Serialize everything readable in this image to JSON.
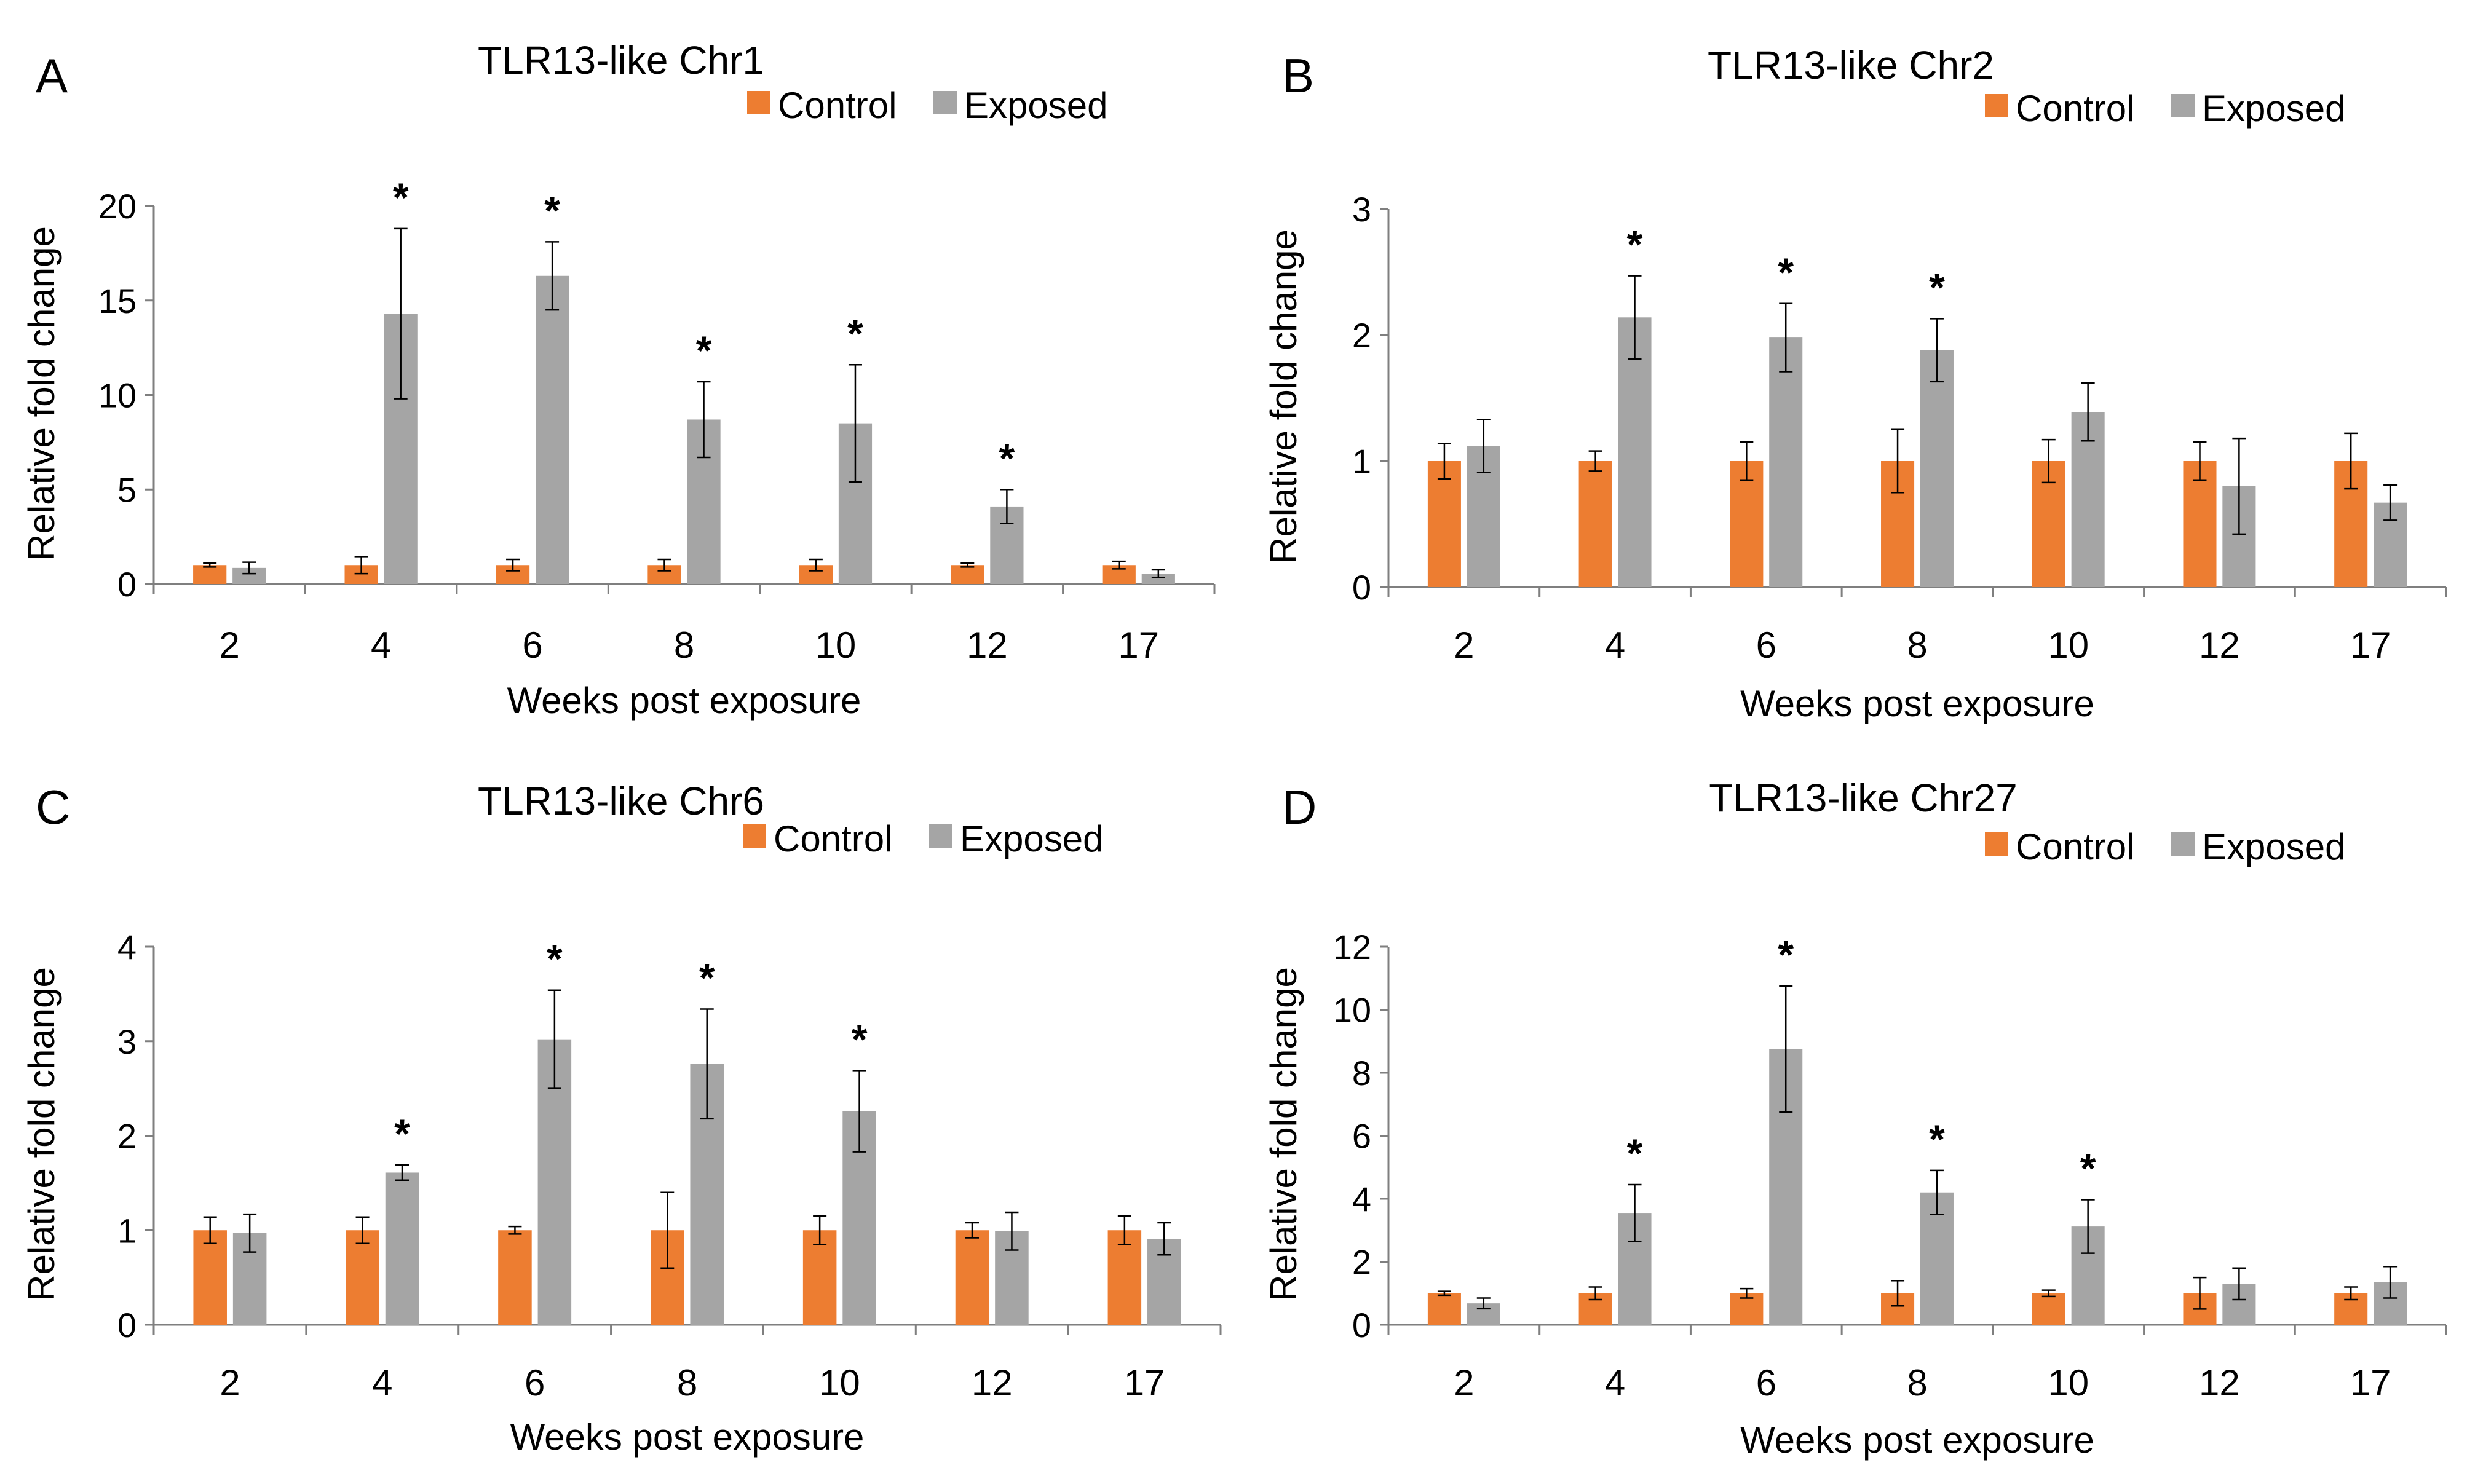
{
  "colors": {
    "control": "#ED7D31",
    "exposed": "#A5A5A5",
    "axis": "#7F7F7F",
    "error_bar": "#000000",
    "text": "#000000"
  },
  "chart_data": [
    {
      "panel": "A",
      "type": "bar",
      "title": "TLR13-like Chr1",
      "xlabel": "Weeks post exposure",
      "ylabel": "Relative fold change",
      "ylim": [
        0,
        20
      ],
      "yticks": [
        0,
        5,
        10,
        15,
        20
      ],
      "grid": false,
      "legend_position": "top-right",
      "categories": [
        "2",
        "4",
        "6",
        "8",
        "10",
        "12",
        "17"
      ],
      "series": [
        {
          "name": "Control",
          "values": [
            1,
            1,
            1,
            1,
            1,
            1,
            1
          ],
          "errors": [
            0.1,
            0.45,
            0.3,
            0.3,
            0.3,
            0.1,
            0.2
          ]
        },
        {
          "name": "Exposed",
          "values": [
            0.85,
            14.3,
            16.3,
            8.7,
            8.5,
            4.1,
            0.55
          ],
          "errors": [
            0.3,
            4.5,
            1.8,
            2.0,
            3.1,
            0.9,
            0.2
          ]
        }
      ],
      "significance_label": "*",
      "significant": [
        false,
        true,
        true,
        true,
        true,
        true,
        false
      ]
    },
    {
      "panel": "B",
      "type": "bar",
      "title": "TLR13-like Chr2",
      "xlabel": "Weeks post exposure",
      "ylabel": "Relative fold change",
      "ylim": [
        0,
        3
      ],
      "yticks": [
        0,
        1,
        2,
        3
      ],
      "grid": false,
      "legend_position": "top-right",
      "categories": [
        "2",
        "4",
        "6",
        "8",
        "10",
        "12",
        "17"
      ],
      "series": [
        {
          "name": "Control",
          "values": [
            1,
            1,
            1,
            1,
            1,
            1,
            1
          ],
          "errors": [
            0.14,
            0.08,
            0.15,
            0.25,
            0.17,
            0.15,
            0.22
          ]
        },
        {
          "name": "Exposed",
          "values": [
            1.12,
            2.14,
            1.98,
            1.88,
            1.39,
            0.8,
            0.67
          ],
          "errors": [
            0.21,
            0.33,
            0.27,
            0.25,
            0.23,
            0.38,
            0.14
          ]
        }
      ],
      "significance_label": "*",
      "significant": [
        false,
        true,
        true,
        true,
        false,
        false,
        false
      ]
    },
    {
      "panel": "C",
      "type": "bar",
      "title": "TLR13-like Chr6",
      "xlabel": "Weeks post exposure",
      "ylabel": "Relative fold change",
      "ylim": [
        0,
        4
      ],
      "yticks": [
        0,
        1,
        2,
        3,
        4
      ],
      "grid": false,
      "legend_position": "top-right",
      "categories": [
        "2",
        "4",
        "6",
        "8",
        "10",
        "12",
        "17"
      ],
      "series": [
        {
          "name": "Control",
          "values": [
            1,
            1,
            1,
            1,
            1,
            1,
            1
          ],
          "errors": [
            0.14,
            0.14,
            0.04,
            0.4,
            0.15,
            0.08,
            0.15
          ]
        },
        {
          "name": "Exposed",
          "values": [
            0.97,
            1.61,
            3.02,
            2.76,
            2.26,
            0.99,
            0.91
          ],
          "errors": [
            0.2,
            0.08,
            0.52,
            0.58,
            0.43,
            0.2,
            0.17
          ]
        }
      ],
      "significance_label": "*",
      "significant": [
        false,
        true,
        true,
        true,
        true,
        false,
        false
      ]
    },
    {
      "panel": "D",
      "type": "bar",
      "title": "TLR13-like Chr27",
      "xlabel": "Weeks post exposure",
      "ylabel": "Relative fold change",
      "ylim": [
        0,
        12
      ],
      "yticks": [
        0,
        2,
        4,
        6,
        8,
        10,
        12
      ],
      "grid": false,
      "legend_position": "top-right",
      "categories": [
        "2",
        "4",
        "6",
        "8",
        "10",
        "12",
        "17"
      ],
      "series": [
        {
          "name": "Control",
          "values": [
            1,
            1,
            1,
            1,
            1,
            1,
            1
          ],
          "errors": [
            0.06,
            0.2,
            0.15,
            0.4,
            0.1,
            0.5,
            0.2
          ]
        },
        {
          "name": "Exposed",
          "values": [
            0.68,
            3.55,
            8.75,
            4.2,
            3.12,
            1.3,
            1.35
          ],
          "errors": [
            0.17,
            0.9,
            2.0,
            0.7,
            0.85,
            0.5,
            0.5
          ]
        }
      ],
      "significance_label": "*",
      "significant": [
        false,
        true,
        true,
        true,
        true,
        false,
        false
      ]
    }
  ]
}
